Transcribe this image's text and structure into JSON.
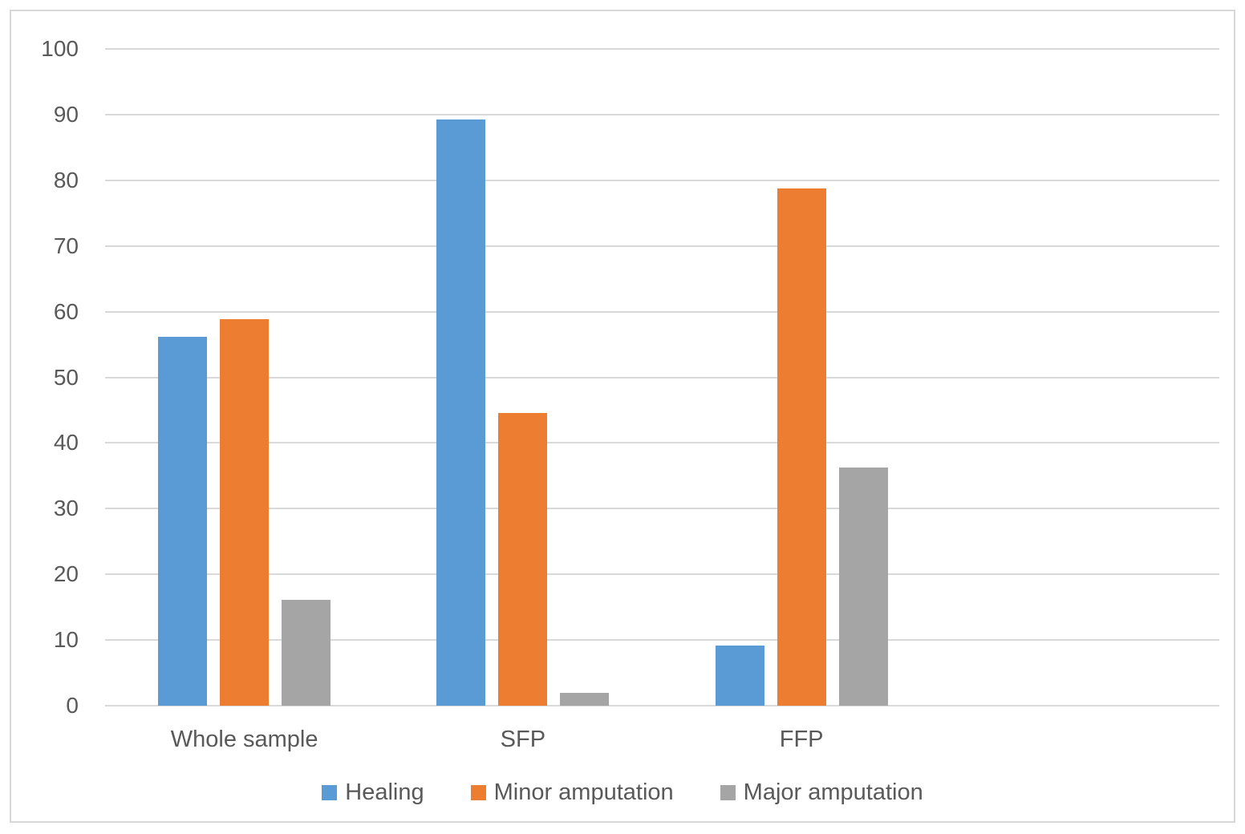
{
  "chart_data": {
    "type": "bar",
    "title": "",
    "xlabel": "",
    "ylabel": "",
    "categories": [
      "Whole sample",
      "SFP",
      "FFP"
    ],
    "series": [
      {
        "name": "Healing",
        "color": "#5B9BD5",
        "values": [
          56.2,
          89.3,
          9.1
        ]
      },
      {
        "name": "Minor amputation",
        "color": "#ED7D31",
        "values": [
          58.8,
          44.6,
          78.8
        ]
      },
      {
        "name": "Major amputation",
        "color": "#A5A5A5",
        "values": [
          16.1,
          2.0,
          36.3
        ]
      }
    ],
    "ylim": [
      0,
      100
    ],
    "ytick_step": 10,
    "ytick_labels": [
      "0",
      "10",
      "20",
      "30",
      "40",
      "50",
      "60",
      "70",
      "80",
      "90",
      "100"
    ],
    "grid": true,
    "legend_position": "bottom",
    "category_slots": 4
  },
  "style": {
    "gridline_color": "#D9D9D9",
    "axis_text_color": "#595959",
    "frame_border_color": "#D8D8D8",
    "background_color": "#FFFFFF"
  }
}
